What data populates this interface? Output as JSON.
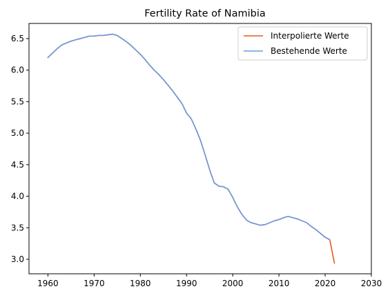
{
  "chart_data": {
    "type": "line",
    "title": "Fertility Rate of Namibia",
    "xlabel": "",
    "ylabel": "",
    "xlim": [
      1955.9,
      2030
    ],
    "ylim": [
      2.77,
      6.74
    ],
    "xticks": [
      1960,
      1970,
      1980,
      1990,
      2000,
      2010,
      2020,
      2030
    ],
    "yticks": [
      3.0,
      3.5,
      4.0,
      4.5,
      5.0,
      5.5,
      6.0,
      6.5
    ],
    "grid": false,
    "legend_position": "top-right",
    "series": [
      {
        "name": "Interpolierte Werte",
        "color": "#e8571e",
        "x": [
          1960,
          1961,
          1962,
          1963,
          1964,
          1965,
          1966,
          1967,
          1968,
          1969,
          1970,
          1971,
          1972,
          1973,
          1974,
          1975,
          1976,
          1977,
          1978,
          1979,
          1980,
          1981,
          1982,
          1983,
          1984,
          1985,
          1986,
          1987,
          1988,
          1989,
          1990,
          1991,
          1992,
          1993,
          1994,
          1995,
          1996,
          1997,
          1998,
          1999,
          2000,
          2001,
          2002,
          2003,
          2004,
          2005,
          2006,
          2007,
          2008,
          2009,
          2010,
          2011,
          2012,
          2013,
          2014,
          2015,
          2016,
          2017,
          2018,
          2019,
          2020,
          2021,
          2022
        ],
        "y": [
          6.2,
          6.27,
          6.34,
          6.4,
          6.43,
          6.46,
          6.48,
          6.5,
          6.52,
          6.54,
          6.54,
          6.55,
          6.55,
          6.56,
          6.57,
          6.55,
          6.5,
          6.45,
          6.39,
          6.32,
          6.25,
          6.17,
          6.08,
          6.0,
          5.93,
          5.85,
          5.76,
          5.67,
          5.57,
          5.47,
          5.32,
          5.23,
          5.07,
          4.89,
          4.66,
          4.42,
          4.21,
          4.16,
          4.15,
          4.11,
          3.98,
          3.83,
          3.71,
          3.62,
          3.58,
          3.56,
          3.54,
          3.55,
          3.58,
          3.61,
          3.63,
          3.66,
          3.68,
          3.66,
          3.64,
          3.61,
          3.58,
          3.52,
          3.47,
          3.41,
          3.35,
          3.31,
          2.94
        ]
      },
      {
        "name": "Bestehende Werte",
        "color": "#6b98e0",
        "x": [
          1960,
          1961,
          1962,
          1963,
          1964,
          1965,
          1966,
          1967,
          1968,
          1969,
          1970,
          1971,
          1972,
          1973,
          1974,
          1975,
          1976,
          1977,
          1978,
          1979,
          1980,
          1981,
          1982,
          1983,
          1984,
          1985,
          1986,
          1987,
          1988,
          1989,
          1990,
          1991,
          1992,
          1993,
          1994,
          1995,
          1996,
          1997,
          1998,
          1999,
          2000,
          2001,
          2002,
          2003,
          2004,
          2005,
          2006,
          2007,
          2008,
          2009,
          2010,
          2011,
          2012,
          2013,
          2014,
          2015,
          2016,
          2017,
          2018,
          2019,
          2020,
          2021
        ],
        "y": [
          6.2,
          6.27,
          6.34,
          6.4,
          6.43,
          6.46,
          6.48,
          6.5,
          6.52,
          6.54,
          6.54,
          6.55,
          6.55,
          6.56,
          6.57,
          6.55,
          6.5,
          6.45,
          6.39,
          6.32,
          6.25,
          6.17,
          6.08,
          6.0,
          5.93,
          5.85,
          5.76,
          5.67,
          5.57,
          5.47,
          5.32,
          5.23,
          5.07,
          4.89,
          4.66,
          4.42,
          4.21,
          4.16,
          4.15,
          4.11,
          3.98,
          3.83,
          3.71,
          3.62,
          3.58,
          3.56,
          3.54,
          3.55,
          3.58,
          3.61,
          3.63,
          3.66,
          3.68,
          3.66,
          3.64,
          3.61,
          3.58,
          3.52,
          3.47,
          3.41,
          3.35,
          3.31
        ]
      }
    ]
  }
}
